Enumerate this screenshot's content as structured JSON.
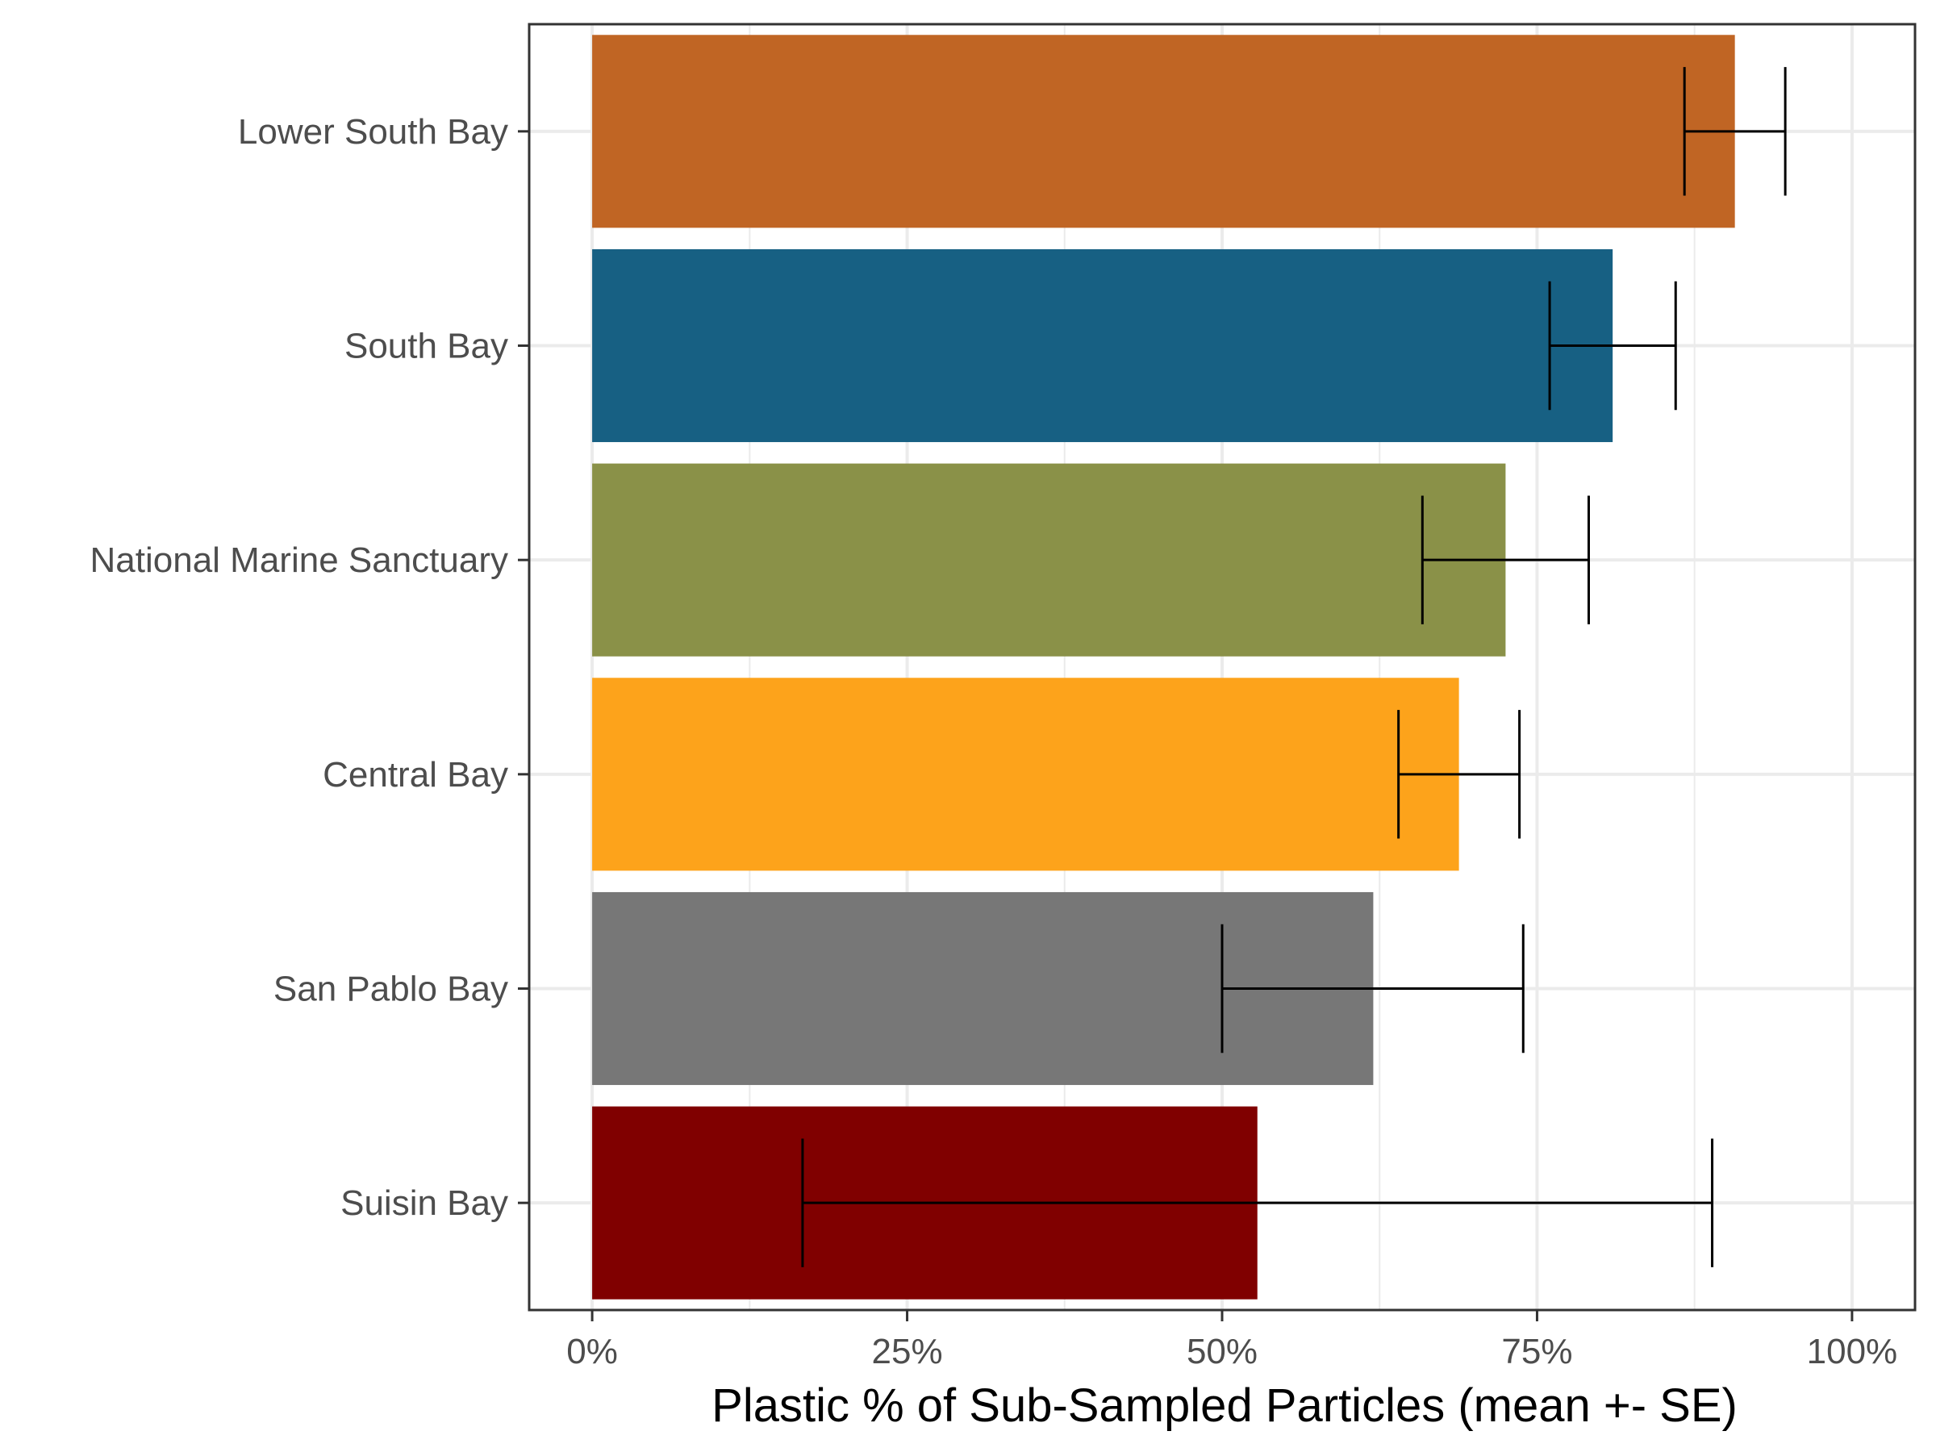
{
  "chart_data": {
    "type": "bar",
    "orientation": "horizontal",
    "xlabel": "Plastic % of Sub-Sampled Particles (mean +- SE)",
    "ylabel": "",
    "xlim": [
      -0.05,
      1.05
    ],
    "x_ticks": [
      0,
      0.25,
      0.5,
      0.75,
      1.0
    ],
    "x_tick_labels": [
      "0%",
      "25%",
      "50%",
      "75%",
      "100%"
    ],
    "grid": true,
    "legend": "none",
    "categories": [
      "Lower South Bay",
      "South Bay",
      "National Marine Sanctuary",
      "Central Bay",
      "San Pablo Bay",
      "Suisin Bay"
    ],
    "values": [
      0.907,
      0.81,
      0.725,
      0.688,
      0.62,
      0.528
    ],
    "se_low": [
      0.867,
      0.76,
      0.659,
      0.64,
      0.5,
      0.167
    ],
    "se_high": [
      0.947,
      0.86,
      0.791,
      0.736,
      0.739,
      0.889
    ],
    "colors": [
      "#C06524",
      "#176083",
      "#8A9148",
      "#FDA31B",
      "#777777",
      "#800000"
    ]
  }
}
